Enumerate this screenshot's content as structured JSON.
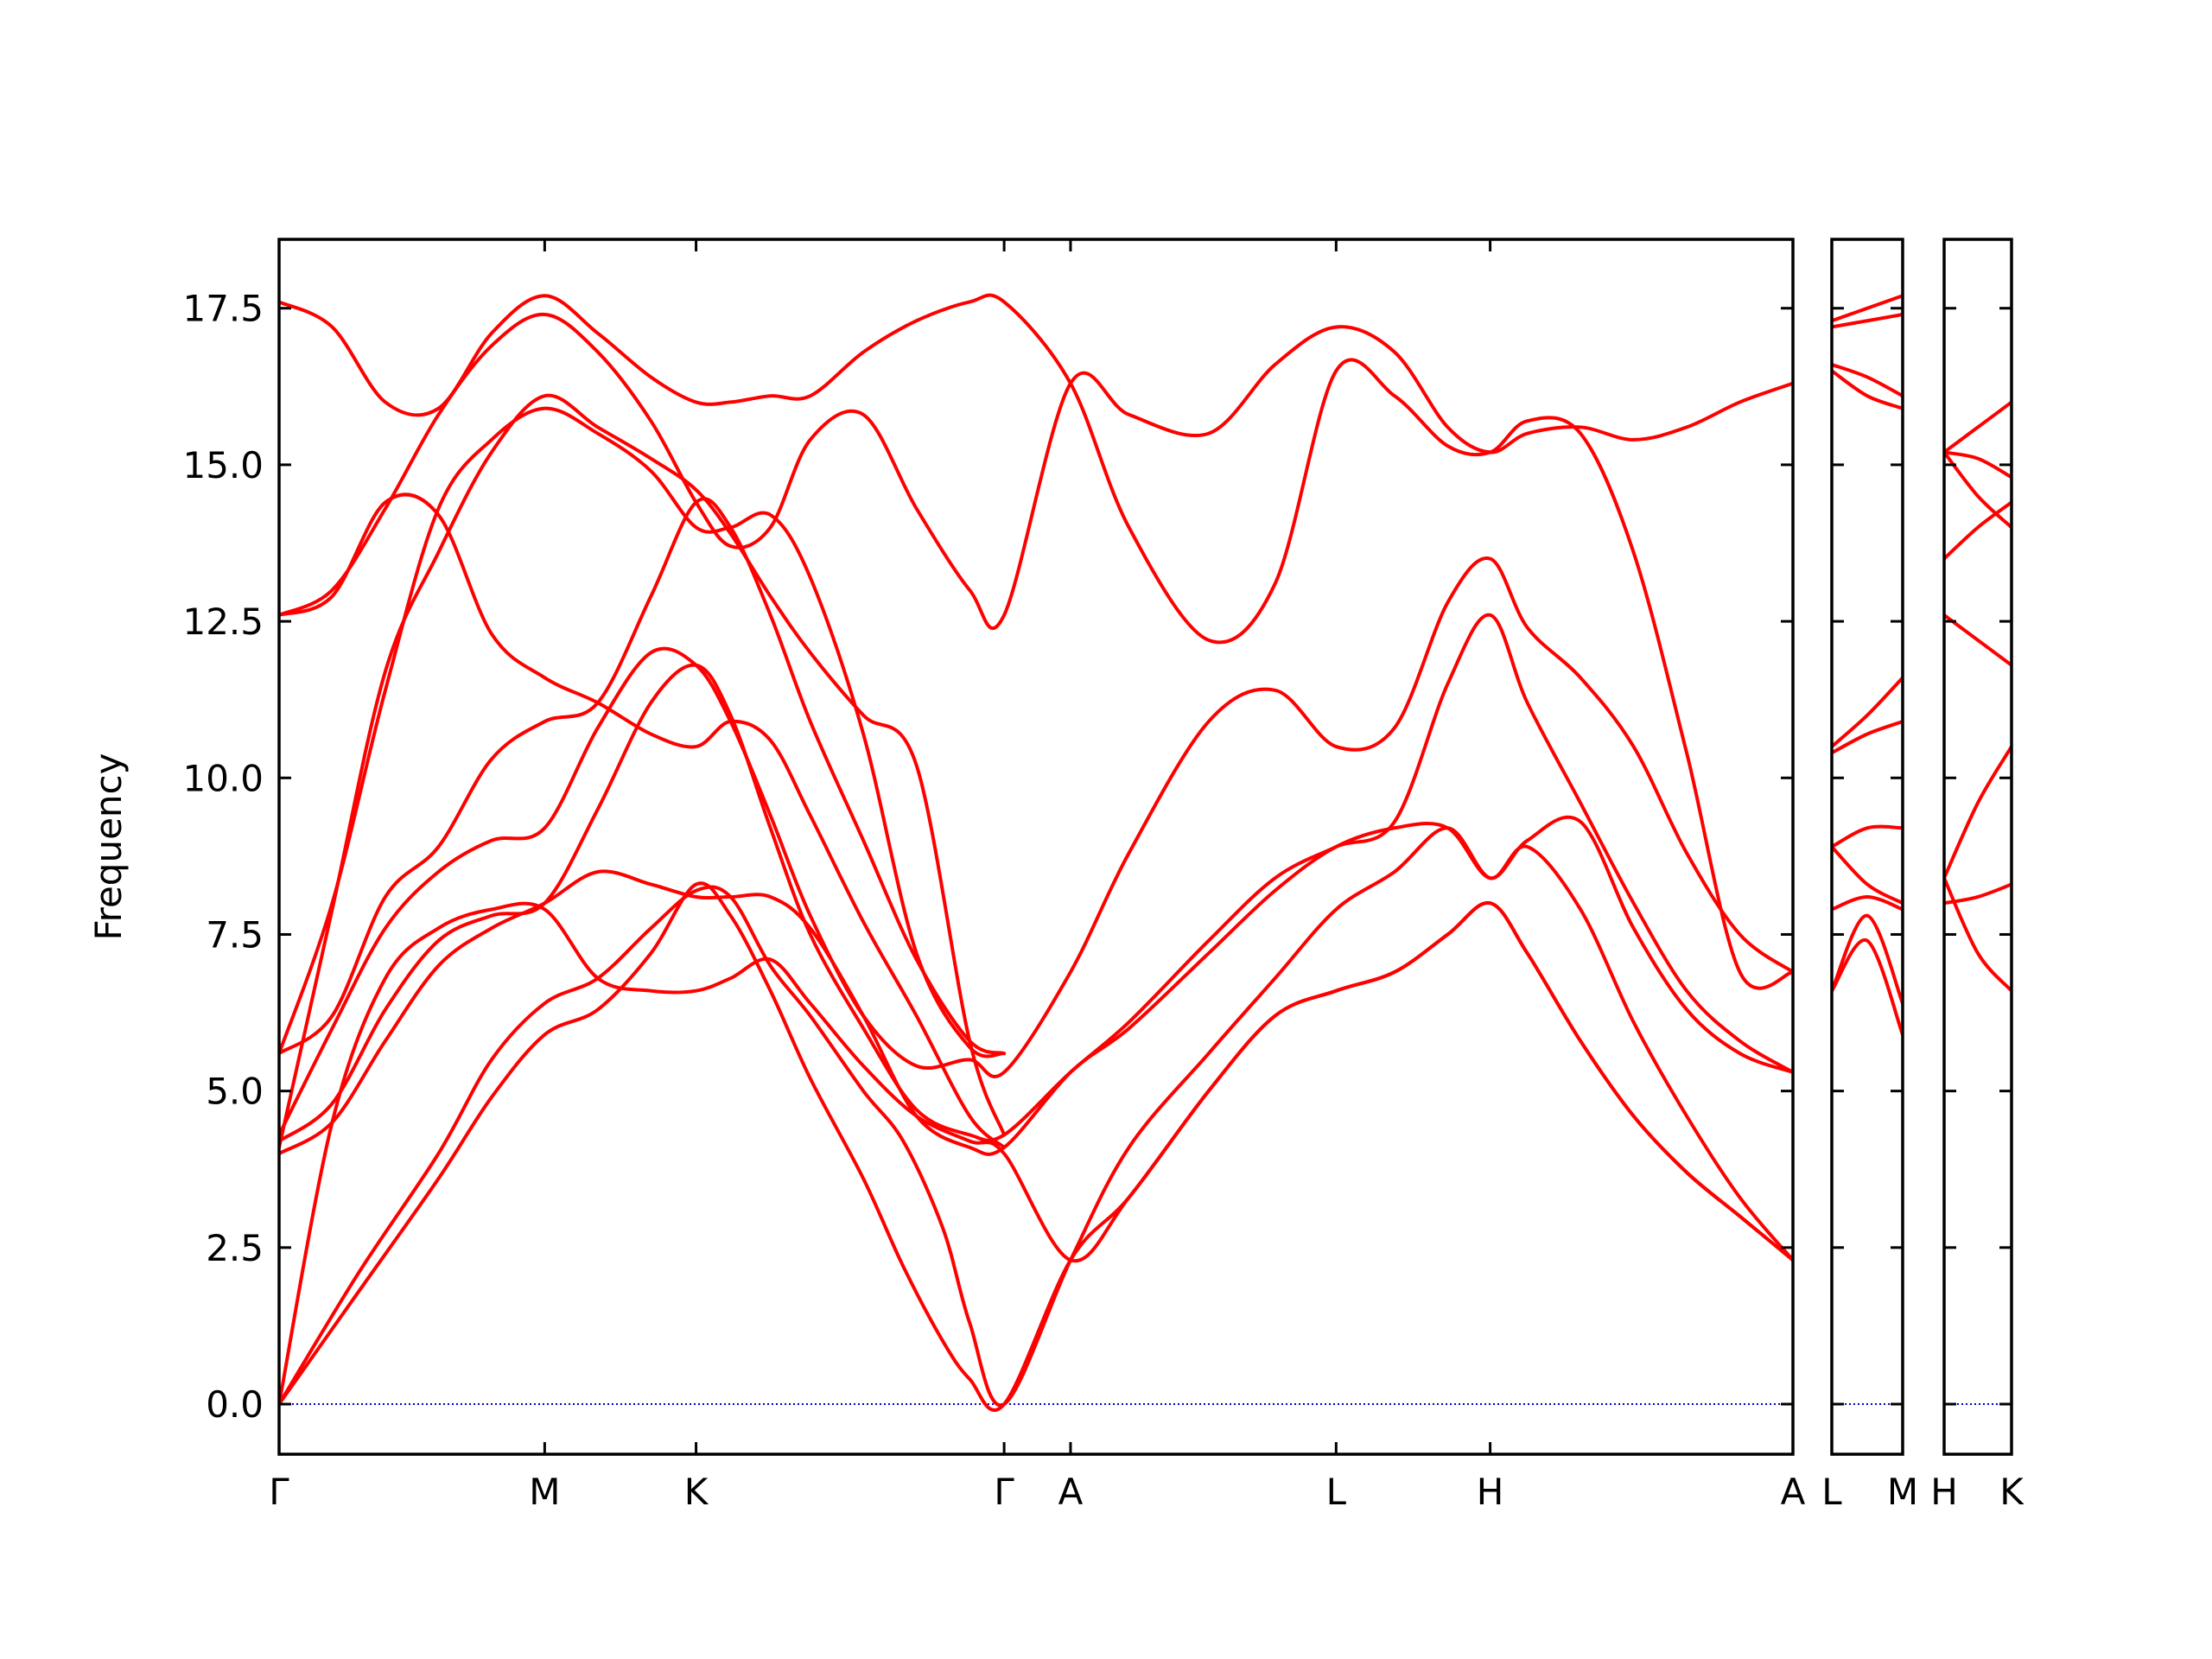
{
  "chart_data": {
    "type": "line",
    "title": "",
    "ylabel": "Frequency",
    "ylim": [
      -0.8,
      18.6
    ],
    "yticks": [
      0.0,
      2.5,
      5.0,
      7.5,
      10.0,
      12.5,
      15.0,
      17.5
    ],
    "ytick_labels": [
      "0.0",
      "2.5",
      "5.0",
      "7.5",
      "10.0",
      "12.5",
      "15.0",
      "17.5"
    ],
    "zero_line_color": "#0000cc",
    "band_color": "#ff0000",
    "panels": [
      {
        "xrange": [
          0,
          5.7
        ],
        "ticks": [
          {
            "x": 0,
            "label": "Γ"
          },
          {
            "x": 1.0,
            "label": "M"
          },
          {
            "x": 1.57,
            "label": "K"
          },
          {
            "x": 2.73,
            "label": "Γ"
          },
          {
            "x": 2.98,
            "label": "A"
          },
          {
            "x": 3.98,
            "label": "L"
          },
          {
            "x": 4.56,
            "label": "H"
          },
          {
            "x": 5.7,
            "label": "A"
          }
        ],
        "bands": [
          {
            "x": [
              0,
              0.3,
              0.6,
              0.8,
              1.0,
              1.2,
              1.4,
              1.57,
              1.7,
              1.85,
              2.0,
              2.2,
              2.35,
              2.5,
              2.6,
              2.73,
              2.98,
              3.2,
              3.5,
              3.75,
              3.98,
              4.2,
              4.4,
              4.56,
              4.7,
              4.9,
              5.1,
              5.3,
              5.5,
              5.7
            ],
            "y": [
              0,
              1.8,
              3.6,
              4.9,
              5.9,
              6.3,
              7.2,
              8.3,
              7.8,
              6.6,
              5.2,
              3.6,
              2.2,
              1.0,
              0.4,
              0,
              2.3,
              3.3,
              5.0,
              6.2,
              6.6,
              6.9,
              7.5,
              8.0,
              7.2,
              5.8,
              4.6,
              3.7,
              3.0,
              2.3
            ]
          },
          {
            "x": [
              0,
              0.3,
              0.6,
              0.8,
              1.0,
              1.2,
              1.4,
              1.57,
              1.7,
              1.85,
              2.0,
              2.2,
              2.35,
              2.5,
              2.6,
              2.73,
              2.98,
              3.2,
              3.5,
              3.75,
              3.98,
              4.2,
              4.4,
              4.56,
              4.7,
              4.9,
              5.1,
              5.3,
              5.5,
              5.7
            ],
            "y": [
              0,
              2.1,
              4.0,
              5.5,
              6.4,
              6.8,
              7.6,
              8.2,
              8.1,
              7.0,
              6.2,
              5.0,
              4.2,
              2.8,
              1.3,
              0,
              2.3,
              4.1,
              5.6,
              6.8,
              7.9,
              8.5,
              9.2,
              8.4,
              8.9,
              7.9,
              6.1,
              4.6,
              3.3,
              2.3
            ]
          },
          {
            "x": [
              0,
              0.2,
              0.4,
              0.6,
              0.8,
              1.0,
              1.2,
              1.4,
              1.57,
              1.7,
              1.85,
              2.0,
              2.2,
              2.4,
              2.6,
              2.73,
              2.98,
              3.2,
              3.5,
              3.75,
              3.98,
              4.2,
              4.4,
              4.56,
              4.7,
              4.9,
              5.1,
              5.3,
              5.5,
              5.7
            ],
            "y": [
              0,
              4.5,
              6.8,
              7.6,
              7.9,
              7.9,
              6.8,
              6.6,
              6.6,
              6.8,
              7.1,
              6.4,
              5.4,
              4.6,
              4.2,
              4.0,
              2.3,
              3.3,
              5.0,
              6.2,
              6.6,
              6.9,
              7.5,
              8.0,
              7.2,
              5.8,
              4.6,
              3.7,
              3.0,
              2.3
            ]
          },
          {
            "x": [
              0,
              0.2,
              0.4,
              0.6,
              0.8,
              1.0,
              1.2,
              1.4,
              1.57,
              1.7,
              1.85,
              2.0,
              2.2,
              2.4,
              2.6,
              2.73,
              2.98,
              3.2,
              3.5,
              3.75,
              3.98,
              4.2,
              4.4,
              4.56,
              4.7,
              4.9,
              5.1,
              5.3,
              5.5,
              5.7
            ],
            "y": [
              4.0,
              4.5,
              5.8,
              7.0,
              7.6,
              8.0,
              8.5,
              8.3,
              8.1,
              8.1,
              8.1,
              7.6,
              6.2,
              4.6,
              4.1,
              4.1,
              5.3,
              6.0,
              7.2,
              8.2,
              8.9,
              9.2,
              9.2,
              8.4,
              9.0,
              9.3,
              7.6,
              6.3,
              5.6,
              5.3
            ]
          },
          {
            "x": [
              0,
              0.2,
              0.4,
              0.6,
              0.8,
              1.0,
              1.2,
              1.4,
              1.57,
              1.7,
              1.85,
              2.0,
              2.2,
              2.4,
              2.6,
              2.73,
              2.98,
              3.2,
              3.5,
              3.75,
              3.98,
              4.2,
              4.4,
              4.56,
              4.7,
              4.9,
              5.1,
              5.3,
              5.5,
              5.7
            ],
            "y": [
              4.2,
              4.8,
              6.3,
              7.4,
              7.8,
              8.0,
              9.5,
              11.2,
              11.8,
              11.0,
              9.2,
              7.5,
              6.0,
              4.7,
              4.3,
              4.3,
              5.3,
              6.1,
              7.4,
              8.4,
              8.9,
              9.3,
              11.5,
              12.6,
              11.2,
              9.6,
              8.0,
              6.6,
              5.8,
              5.3
            ]
          },
          {
            "x": [
              0,
              0.2,
              0.4,
              0.6,
              0.8,
              1.0,
              1.2,
              1.4,
              1.57,
              1.7,
              1.85,
              2.0,
              2.2,
              2.4,
              2.6,
              2.73,
              2.98,
              3.2,
              3.5,
              3.75,
              3.98,
              4.2,
              4.4,
              4.56,
              4.7,
              4.9,
              5.1,
              5.3,
              5.5,
              5.7
            ],
            "y": [
              4.3,
              6.0,
              7.6,
              8.5,
              9.0,
              9.2,
              10.8,
              12.0,
              11.8,
              10.9,
              9.4,
              7.8,
              6.2,
              5.4,
              5.5,
              5.3,
              6.9,
              8.8,
              10.9,
              11.4,
              10.5,
              10.8,
              12.8,
              13.5,
              12.4,
              11.6,
              10.5,
              8.8,
              7.5,
              6.9
            ]
          },
          {
            "x": [
              0,
              0.2,
              0.4,
              0.6,
              0.8,
              1.0,
              1.2,
              1.4,
              1.57,
              1.7,
              1.85,
              2.0,
              2.2,
              2.4,
              2.6,
              2.73
            ],
            "y": [
              5.6,
              6.2,
              8.1,
              8.9,
              10.3,
              10.9,
              11.2,
              12.9,
              14.4,
              14.0,
              12.6,
              10.9,
              9.0,
              7.1,
              5.8,
              5.6
            ]
          },
          {
            "x": [
              0,
              0.2,
              0.4,
              0.6,
              0.8,
              1.0,
              1.2,
              1.4,
              1.57,
              1.7,
              1.85,
              2.0,
              2.2,
              2.4,
              2.6,
              2.73
            ],
            "y": [
              5.6,
              8.0,
              11.4,
              14.3,
              15.4,
              15.9,
              15.5,
              14.9,
              14.0,
              14.0,
              14.2,
              13.2,
              10.7,
              7.2,
              5.7,
              5.6
            ]
          },
          {
            "x": [
              0,
              0.2,
              0.4,
              0.6,
              0.8,
              1.0,
              1.2,
              1.4,
              1.57,
              1.7,
              1.85,
              2.0,
              2.2,
              2.4,
              2.6,
              2.73
            ],
            "y": [
              4.1,
              7.9,
              11.7,
              13.6,
              15.2,
              16.1,
              15.6,
              15.1,
              14.6,
              13.9,
              12.9,
              12.0,
              11.0,
              10.2,
              5.8,
              4.3
            ]
          },
          {
            "x": [
              0,
              0.2,
              0.4,
              0.6,
              0.8,
              1.0,
              1.2,
              1.4,
              1.57,
              1.7,
              1.85,
              2.0,
              2.2,
              2.4,
              2.6,
              2.73
            ],
            "y": [
              12.6,
              12.9,
              14.4,
              14.2,
              12.3,
              11.6,
              11.2,
              10.7,
              10.5,
              10.9,
              10.6,
              9.4,
              7.7,
              6.2,
              4.6,
              4.1
            ]
          },
          {
            "x": [
              0,
              0.2,
              0.4,
              0.6,
              0.8,
              1.0,
              1.2,
              1.4,
              1.57,
              1.7,
              1.85,
              2.0,
              2.2,
              2.4,
              2.6,
              2.73,
              2.98,
              3.2,
              3.5,
              3.75,
              3.98,
              4.2,
              4.4,
              4.56,
              4.7,
              4.9,
              5.1,
              5.3,
              5.5,
              5.7
            ],
            "y": [
              12.6,
              13.0,
              14.3,
              15.8,
              16.9,
              17.4,
              16.8,
              15.7,
              14.4,
              13.7,
              14.0,
              15.4,
              15.8,
              14.3,
              13.0,
              12.6,
              16.3,
              15.8,
              15.5,
              16.6,
              17.2,
              16.8,
              15.6,
              15.2,
              15.5,
              15.6,
              15.4,
              15.6,
              16.0,
              16.3
            ]
          },
          {
            "x": [
              0,
              0.2,
              0.4,
              0.6,
              0.8,
              1.0,
              1.2,
              1.4,
              1.57,
              1.7,
              1.85,
              2.0,
              2.2,
              2.4,
              2.6,
              2.73,
              2.98,
              3.2,
              3.5,
              3.75,
              3.98,
              4.2,
              4.4,
              4.56,
              4.7,
              4.9,
              5.1,
              5.3,
              5.5,
              5.7
            ],
            "y": [
              17.6,
              17.2,
              16.0,
              15.9,
              17.1,
              17.7,
              17.1,
              16.4,
              16.0,
              16.0,
              16.1,
              16.1,
              16.8,
              17.3,
              17.6,
              17.6,
              16.3,
              14.0,
              12.2,
              13.1,
              16.5,
              16.1,
              15.3,
              15.2,
              15.7,
              15.5,
              13.6,
              10.4,
              6.9,
              6.9
            ]
          }
        ]
      },
      {
        "xrange": [
          0,
          1
        ],
        "ticks": [
          {
            "x": 0,
            "label": "L"
          },
          {
            "x": 1,
            "label": "M"
          }
        ],
        "bands": [
          {
            "x": [
              0,
              0.5,
              1
            ],
            "y": [
              6.6,
              7.4,
              5.9
            ]
          },
          {
            "x": [
              0,
              0.5,
              1
            ],
            "y": [
              6.6,
              7.8,
              6.4
            ]
          },
          {
            "x": [
              0,
              0.5,
              1
            ],
            "y": [
              7.9,
              8.1,
              7.9
            ]
          },
          {
            "x": [
              0,
              0.5,
              1
            ],
            "y": [
              8.9,
              8.3,
              8.0
            ]
          },
          {
            "x": [
              0,
              0.5,
              1
            ],
            "y": [
              8.9,
              9.2,
              9.2
            ]
          },
          {
            "x": [
              0,
              0.5,
              1
            ],
            "y": [
              10.4,
              10.7,
              10.9
            ]
          },
          {
            "x": [
              0,
              0.5,
              1
            ],
            "y": [
              10.5,
              11.0,
              11.6
            ]
          },
          {
            "x": [
              0,
              0.5,
              1
            ],
            "y": [
              16.5,
              16.1,
              15.9
            ]
          },
          {
            "x": [
              0,
              0.5,
              1
            ],
            "y": [
              16.6,
              16.4,
              16.1
            ]
          },
          {
            "x": [
              0,
              0.5,
              1
            ],
            "y": [
              17.2,
              17.3,
              17.4
            ]
          },
          {
            "x": [
              0,
              0.5,
              1
            ],
            "y": [
              17.3,
              17.5,
              17.7
            ]
          }
        ]
      },
      {
        "xrange": [
          0,
          1
        ],
        "ticks": [
          {
            "x": 0,
            "label": "H"
          },
          {
            "x": 1,
            "label": "K"
          }
        ],
        "bands": [
          {
            "x": [
              0,
              0.5,
              1
            ],
            "y": [
              8.4,
              7.2,
              6.6
            ]
          },
          {
            "x": [
              0,
              0.5,
              1
            ],
            "y": [
              8.0,
              8.1,
              8.3
            ]
          },
          {
            "x": [
              0,
              0.5,
              1
            ],
            "y": [
              8.4,
              9.6,
              10.5
            ]
          },
          {
            "x": [
              0,
              0.5,
              1
            ],
            "y": [
              12.6,
              12.2,
              11.8
            ]
          },
          {
            "x": [
              0,
              0.5,
              1
            ],
            "y": [
              13.5,
              14.0,
              14.4
            ]
          },
          {
            "x": [
              0,
              0.5,
              1
            ],
            "y": [
              15.2,
              14.5,
              14.0
            ]
          },
          {
            "x": [
              0,
              0.5,
              1
            ],
            "y": [
              15.2,
              15.1,
              14.8
            ]
          },
          {
            "x": [
              0,
              0.5,
              1
            ],
            "y": [
              15.2,
              15.6,
              16.0
            ]
          }
        ]
      }
    ]
  }
}
